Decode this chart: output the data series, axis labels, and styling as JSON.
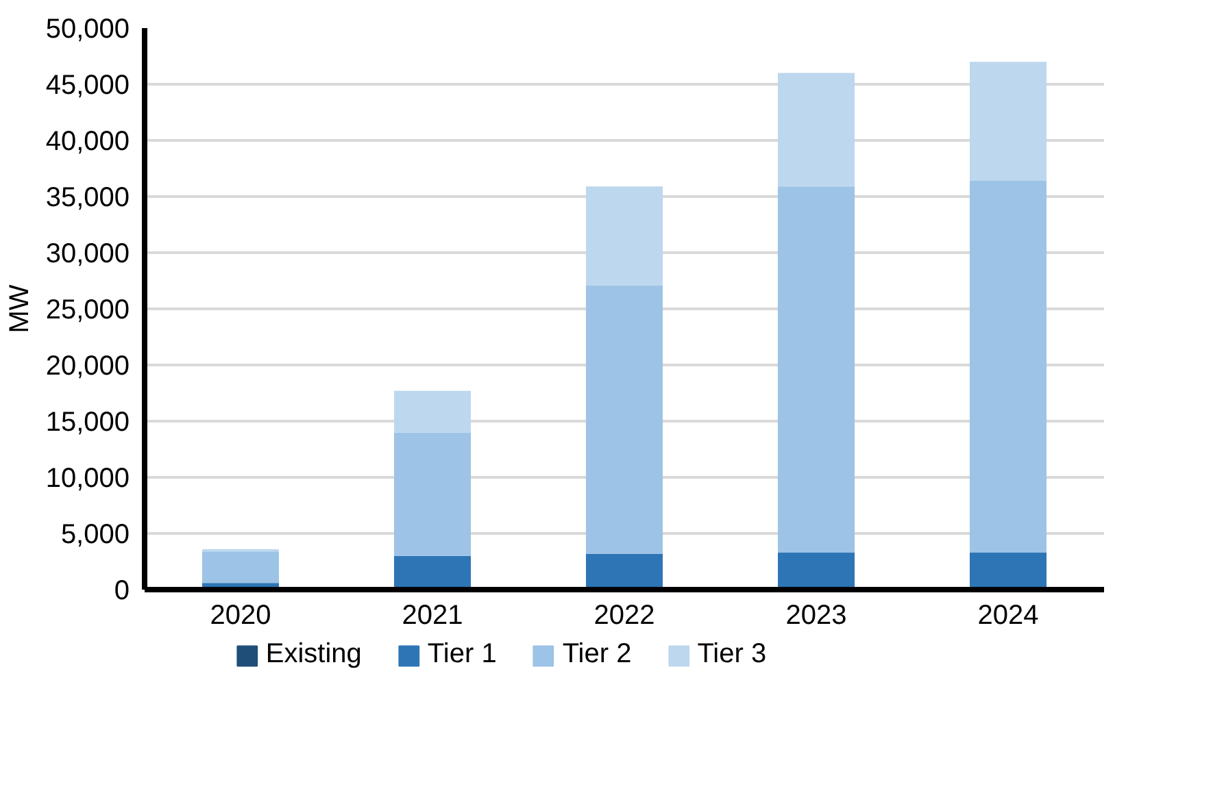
{
  "chart_data": {
    "type": "bar",
    "stacked": true,
    "ylabel": "MW",
    "categories": [
      "2020",
      "2021",
      "2022",
      "2023",
      "2024"
    ],
    "series": [
      {
        "name": "Existing",
        "color": "#1f4e79",
        "values": [
          0,
          0,
          0,
          0,
          0
        ]
      },
      {
        "name": "Tier 1",
        "color": "#2e75b6",
        "values": [
          600,
          3000,
          3200,
          3300,
          3300
        ]
      },
      {
        "name": "Tier 2",
        "color": "#9dc3e6",
        "values": [
          2800,
          11000,
          23900,
          32600,
          33100
        ]
      },
      {
        "name": "Tier 3",
        "color": "#bdd7ee",
        "values": [
          200,
          3700,
          8800,
          10100,
          10600
        ]
      }
    ],
    "ylim": [
      0,
      50000
    ],
    "yticks": [
      0,
      {
        "value": 5000,
        "label": "5,000"
      },
      {
        "value": 10000,
        "label": "10,000"
      },
      {
        "value": 15000,
        "label": "15,000"
      },
      {
        "value": 20000,
        "label": "20,000"
      },
      {
        "value": 25000,
        "label": "25,000"
      },
      {
        "value": 30000,
        "label": "30,000"
      },
      {
        "value": 35000,
        "label": "35,000"
      },
      {
        "value": 40000,
        "label": "40,000"
      },
      {
        "value": 45000,
        "label": "45,000"
      },
      {
        "value": 50000,
        "label": "50,000"
      }
    ],
    "grid": "y",
    "legend": "bottom"
  }
}
